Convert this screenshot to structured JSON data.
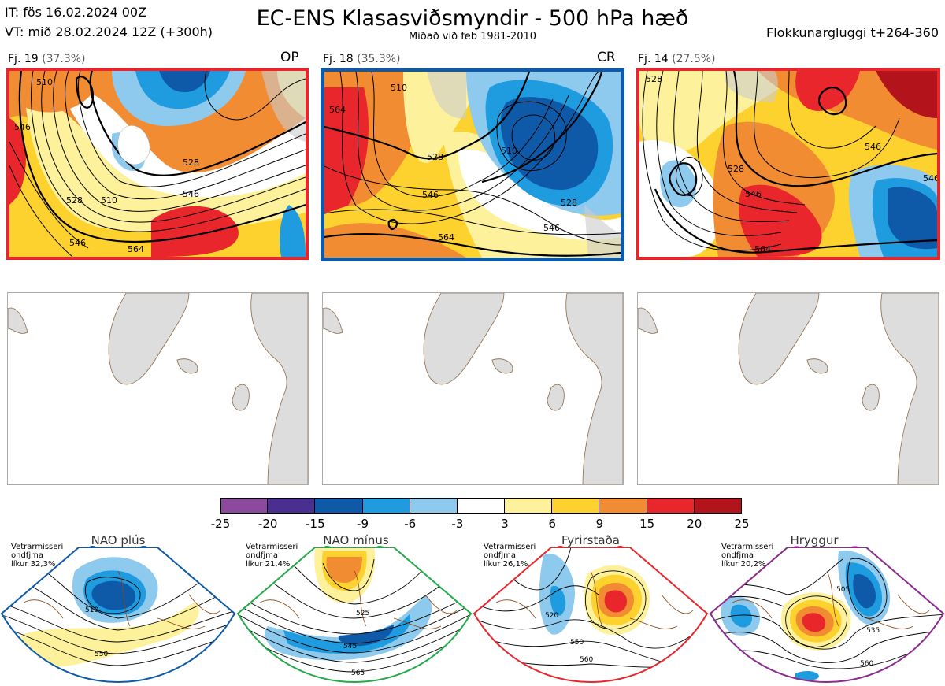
{
  "header": {
    "issue_time": "IT: fös 16.02.2024 00Z",
    "valid_time": "VT: mið 28.02.2024 12Z  (+300h)",
    "title": "EC-ENS Klasasviðsmyndir - 500 hPa hæð",
    "subtitle": "Miðað við feb 1981-2010",
    "window": "Flokkunargluggi t+264-360"
  },
  "clusters": [
    {
      "label": "Fj. 19",
      "percent": "(37.3%)",
      "tag": "OP",
      "border_color": "#e8262b",
      "contour_labels": [
        "510",
        "528",
        "546",
        "546",
        "528",
        "510",
        "546",
        "564"
      ]
    },
    {
      "label": "Fj. 18",
      "percent": "(35.3%)",
      "tag": "CR",
      "border_color": "#0f5aa8",
      "contour_labels": [
        "510",
        "528",
        "546",
        "564",
        "528",
        "510",
        "546",
        "564"
      ]
    },
    {
      "label": "Fj. 14",
      "percent": "(27.5%)",
      "tag": "",
      "border_color": "#e8262b",
      "contour_labels": [
        "528",
        "546",
        "564",
        "546",
        "528",
        "546"
      ]
    }
  ],
  "colorbar": {
    "ticks": [
      "-25",
      "-20",
      "-15",
      "-9",
      "-6",
      "-3",
      "3",
      "6",
      "9",
      "15",
      "20",
      "25"
    ],
    "colors": [
      "#8c4a9c",
      "#4a2f91",
      "#0f5aa8",
      "#1f9be0",
      "#8ec9ee",
      "#ffffff",
      "#fdf29b",
      "#fdd12e",
      "#f28c33",
      "#e8262b",
      "#b3131b"
    ]
  },
  "regimes": [
    {
      "name": "NAO plús",
      "info": [
        "Vetrarmisseri",
        "ondfjma",
        "líkur 32,3%"
      ],
      "dot_color": "#0f5aa8",
      "frame_color": "#0f5aa8",
      "labels": [
        "510",
        "550"
      ]
    },
    {
      "name": "NAO mínus",
      "info": [
        "Vetrarmisseri",
        "ondfjma",
        "líkur 21,4%"
      ],
      "dot_color": "#22aa4a",
      "frame_color": "#22aa4a",
      "labels": [
        "525",
        "545",
        "565"
      ]
    },
    {
      "name": "Fyrirstaða",
      "info": [
        "Vetrarmisseri",
        "ondfjma",
        "líkur 26,1%"
      ],
      "dot_color": "#e8262b",
      "frame_color": "#e8262b",
      "labels": [
        "520",
        "550",
        "560"
      ]
    },
    {
      "name": "Hryggur",
      "info": [
        "Vetrarmisseri",
        "ondfjma",
        "líkur 20,2%"
      ],
      "dot_color": "#ec6fe3",
      "frame_color": "#8a2b8e",
      "labels": [
        "505",
        "535",
        "560"
      ]
    }
  ]
}
